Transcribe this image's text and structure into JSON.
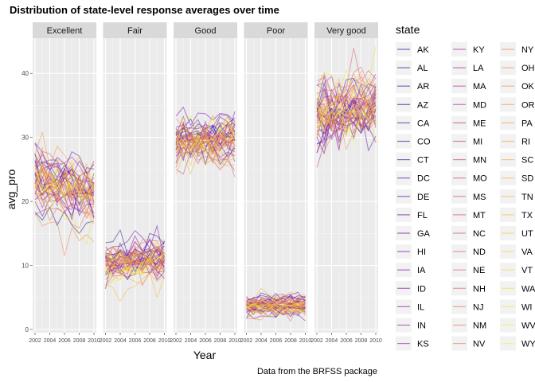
{
  "chart_data": {
    "type": "line",
    "title": "Distribution of state-level response averages over time",
    "xlabel": "Year",
    "ylabel": "avg_pro",
    "caption": "Data from the BRFSS package",
    "ylim": [
      0,
      45
    ],
    "yticks": [
      0,
      10,
      20,
      30,
      40
    ],
    "xlim": [
      2002,
      2010
    ],
    "xticks": [
      2002,
      2004,
      2006,
      2008,
      2010
    ],
    "years": [
      2002,
      2003,
      2004,
      2005,
      2006,
      2007,
      2008,
      2009,
      2010
    ],
    "facets": [
      "Excellent",
      "Fair",
      "Good",
      "Poor",
      "Very good"
    ],
    "legend": {
      "title": "state",
      "position": "right",
      "entries": [
        "AK",
        "AL",
        "AR",
        "AZ",
        "CA",
        "CO",
        "CT",
        "DC",
        "DE",
        "FL",
        "GA",
        "HI",
        "IA",
        "ID",
        "IL",
        "IN",
        "KS",
        "KY",
        "LA",
        "MA",
        "MD",
        "ME",
        "MI",
        "MN",
        "MO",
        "MS",
        "MT",
        "NC",
        "ND",
        "NE",
        "NH",
        "NJ",
        "NM",
        "NV",
        "NY",
        "OH",
        "OK",
        "OR",
        "PA",
        "RI",
        "SC",
        "SD",
        "TN",
        "TX",
        "UT",
        "VA",
        "VT",
        "WA",
        "WI",
        "WV",
        "WY"
      ]
    },
    "palette": [
      "#0d0887",
      "#7e03a8",
      "#cc4778",
      "#f89540",
      "#f0f921"
    ],
    "series_source": "approximate per-state averages; series rendered from a generated ensemble matching each facet's observed level and spread",
    "facet_levels": {
      "Excellent": {
        "mean_start": 23.5,
        "mean_end": 21.0,
        "spread": 2.6
      },
      "Fair": {
        "mean_start": 10.0,
        "mean_end": 11.0,
        "spread": 1.8
      },
      "Good": {
        "mean_start": 29.0,
        "mean_end": 29.5,
        "spread": 2.0
      },
      "Poor": {
        "mean_start": 3.5,
        "mean_end": 3.8,
        "spread": 0.9
      },
      "Very good": {
        "mean_start": 33.5,
        "mean_end": 35.5,
        "spread": 2.8
      }
    },
    "grid": true
  }
}
